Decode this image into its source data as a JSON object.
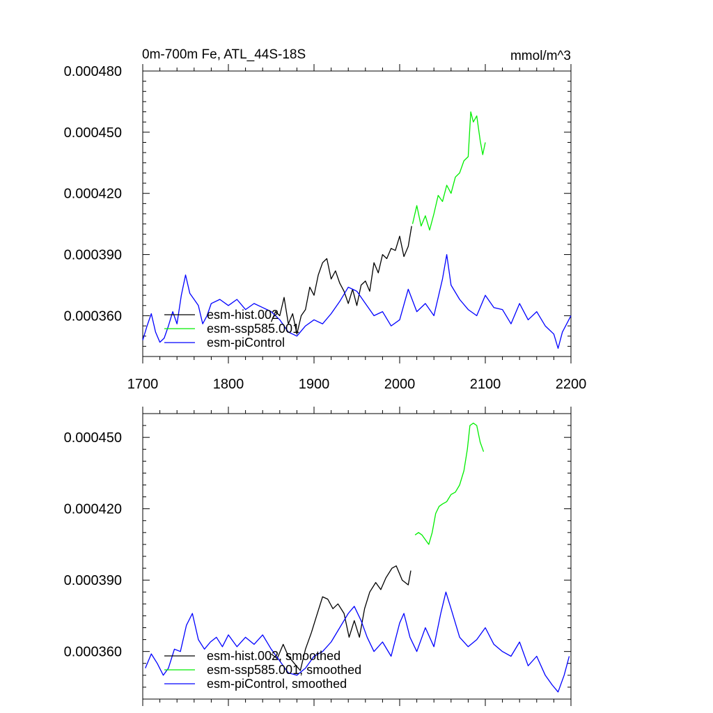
{
  "figure": {
    "title_left": "0m-700m Fe, ATL_44S-18S",
    "title_right": "mmol/m^3"
  },
  "chart_data": [
    {
      "type": "line",
      "title": "0m-700m Fe, ATL_44S-18S",
      "units": "mmol/m^3",
      "xlim": [
        1700,
        2200
      ],
      "ylim": [
        0.00034,
        0.00048
      ],
      "x_ticks": [
        1700,
        1800,
        1900,
        2000,
        2100,
        2200
      ],
      "x_tick_labels": [
        "1700",
        "1800",
        "1900",
        "2000",
        "2100",
        "2200"
      ],
      "y_ticks": [
        0.00036,
        0.00039,
        0.00042,
        0.00045,
        0.00048
      ],
      "y_tick_labels": [
        "0.000360",
        "0.000390",
        "0.000420",
        "0.000450",
        "0.000480"
      ],
      "grid": false,
      "legend_position": "bottom-left",
      "series": [
        {
          "name": "esm-hist.002",
          "color": "#000000",
          "x": [
            1850,
            1855,
            1860,
            1865,
            1870,
            1875,
            1880,
            1885,
            1890,
            1895,
            1900,
            1905,
            1910,
            1915,
            1920,
            1925,
            1930,
            1935,
            1940,
            1945,
            1950,
            1955,
            1960,
            1965,
            1970,
            1975,
            1980,
            1985,
            1990,
            1995,
            2000,
            2005,
            2010,
            2014
          ],
          "y": [
            0.000357,
            0.000362,
            0.00036,
            0.000369,
            0.000356,
            0.000361,
            0.000351,
            0.00036,
            0.000363,
            0.000374,
            0.00037,
            0.00038,
            0.000386,
            0.000388,
            0.000378,
            0.000382,
            0.000376,
            0.000372,
            0.000366,
            0.000373,
            0.000365,
            0.000375,
            0.000377,
            0.000372,
            0.000386,
            0.000381,
            0.00039,
            0.000388,
            0.000393,
            0.000392,
            0.000399,
            0.000389,
            0.000394,
            0.000404
          ]
        },
        {
          "name": "esm-ssp585.001",
          "color": "#00ee00",
          "x": [
            2015,
            2020,
            2025,
            2030,
            2035,
            2040,
            2045,
            2050,
            2055,
            2060,
            2065,
            2070,
            2075,
            2080,
            2083,
            2086,
            2090,
            2094,
            2097,
            2100
          ],
          "y": [
            0.000405,
            0.000414,
            0.000404,
            0.000409,
            0.000402,
            0.00041,
            0.000419,
            0.000416,
            0.000424,
            0.00042,
            0.000428,
            0.00043,
            0.000436,
            0.000438,
            0.00046,
            0.000455,
            0.000458,
            0.000446,
            0.000439,
            0.000445
          ]
        },
        {
          "name": "esm-piControl",
          "color": "#0000ff",
          "x": [
            1700,
            1705,
            1710,
            1715,
            1720,
            1725,
            1730,
            1735,
            1740,
            1745,
            1750,
            1755,
            1760,
            1765,
            1770,
            1775,
            1780,
            1790,
            1800,
            1810,
            1820,
            1830,
            1840,
            1850,
            1860,
            1870,
            1880,
            1890,
            1900,
            1910,
            1920,
            1930,
            1940,
            1950,
            1960,
            1970,
            1980,
            1990,
            2000,
            2010,
            2020,
            2030,
            2040,
            2050,
            2055,
            2060,
            2070,
            2080,
            2090,
            2100,
            2110,
            2120,
            2130,
            2140,
            2150,
            2160,
            2170,
            2180,
            2185,
            2190,
            2200
          ],
          "y": [
            0.000348,
            0.000355,
            0.000361,
            0.000352,
            0.000347,
            0.000349,
            0.000355,
            0.000362,
            0.000356,
            0.00037,
            0.00038,
            0.000371,
            0.000368,
            0.000365,
            0.000356,
            0.00036,
            0.000366,
            0.000368,
            0.000365,
            0.000368,
            0.000363,
            0.000366,
            0.000364,
            0.000362,
            0.000358,
            0.000352,
            0.00035,
            0.000355,
            0.000358,
            0.000356,
            0.000361,
            0.000367,
            0.000374,
            0.000372,
            0.000366,
            0.00036,
            0.000362,
            0.000355,
            0.000358,
            0.000373,
            0.000362,
            0.000366,
            0.00036,
            0.000378,
            0.00039,
            0.000375,
            0.000368,
            0.000363,
            0.00036,
            0.00037,
            0.000364,
            0.000363,
            0.000356,
            0.000366,
            0.000358,
            0.000362,
            0.000355,
            0.000351,
            0.000344,
            0.000352,
            0.00036
          ]
        }
      ]
    },
    {
      "type": "line",
      "xlim": [
        1700,
        2200
      ],
      "ylim": [
        0.00034,
        0.00046
      ],
      "x_ticks": [
        1700,
        1800,
        1900,
        2000,
        2100,
        2200
      ],
      "y_ticks": [
        0.00036,
        0.00039,
        0.00042,
        0.00045
      ],
      "y_tick_labels": [
        "0.000360",
        "0.000390",
        "0.000420",
        "0.000450"
      ],
      "grid": false,
      "legend_position": "bottom-left",
      "series": [
        {
          "name": "esm-hist.002, smoothed",
          "color": "#000000",
          "x": [
            1850,
            1857,
            1864,
            1870,
            1877,
            1884,
            1890,
            1897,
            1903,
            1910,
            1916,
            1922,
            1928,
            1935,
            1941,
            1947,
            1953,
            1959,
            1965,
            1972,
            1978,
            1984,
            1991,
            1996,
            2003,
            2010,
            2013
          ],
          "y": [
            0.000359,
            0.000357,
            0.000363,
            0.000358,
            0.000355,
            0.000352,
            0.000361,
            0.000368,
            0.000375,
            0.000383,
            0.000382,
            0.000378,
            0.00038,
            0.000376,
            0.000366,
            0.000373,
            0.000366,
            0.000378,
            0.000385,
            0.000389,
            0.000386,
            0.000391,
            0.000395,
            0.000396,
            0.00039,
            0.000388,
            0.000394
          ]
        },
        {
          "name": "esm-ssp585.001, smoothed",
          "color": "#00ee00",
          "x": [
            2018,
            2022,
            2026,
            2030,
            2034,
            2038,
            2042,
            2046,
            2050,
            2055,
            2060,
            2065,
            2070,
            2075,
            2079,
            2082,
            2086,
            2090,
            2094,
            2098
          ],
          "y": [
            0.000409,
            0.00041,
            0.000409,
            0.000407,
            0.000405,
            0.00041,
            0.000418,
            0.000421,
            0.000422,
            0.000423,
            0.000426,
            0.000427,
            0.00043,
            0.000436,
            0.000445,
            0.000455,
            0.000456,
            0.000455,
            0.000448,
            0.000444
          ]
        },
        {
          "name": "esm-piControl, smoothed",
          "color": "#0000ff",
          "x": [
            1703,
            1710,
            1717,
            1724,
            1730,
            1737,
            1744,
            1751,
            1758,
            1765,
            1772,
            1779,
            1786,
            1793,
            1800,
            1810,
            1820,
            1830,
            1840,
            1850,
            1860,
            1870,
            1880,
            1890,
            1900,
            1910,
            1920,
            1930,
            1940,
            1947,
            1955,
            1962,
            1970,
            1980,
            1990,
            2000,
            2005,
            2012,
            2020,
            2030,
            2040,
            2048,
            2054,
            2060,
            2070,
            2080,
            2090,
            2100,
            2110,
            2120,
            2130,
            2140,
            2150,
            2160,
            2170,
            2178,
            2185,
            2192,
            2198
          ],
          "y": [
            0.000353,
            0.000359,
            0.000355,
            0.00035,
            0.000353,
            0.000361,
            0.00036,
            0.000371,
            0.000376,
            0.000365,
            0.000361,
            0.000364,
            0.000366,
            0.000362,
            0.000367,
            0.000362,
            0.000366,
            0.000363,
            0.000367,
            0.000361,
            0.000356,
            0.000351,
            0.00035,
            0.000353,
            0.000358,
            0.00036,
            0.000364,
            0.00037,
            0.000376,
            0.000379,
            0.000373,
            0.000366,
            0.00036,
            0.000364,
            0.000358,
            0.000372,
            0.000376,
            0.000366,
            0.00036,
            0.00037,
            0.000362,
            0.000376,
            0.000385,
            0.000378,
            0.000366,
            0.000362,
            0.000365,
            0.00037,
            0.000363,
            0.00036,
            0.000358,
            0.000364,
            0.000354,
            0.000358,
            0.00035,
            0.000346,
            0.000343,
            0.00035,
            0.000358
          ]
        }
      ]
    }
  ]
}
